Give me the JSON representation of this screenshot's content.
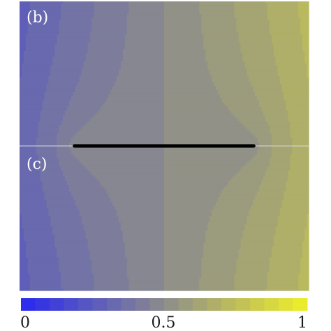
{
  "panels": [
    {
      "label": "(b)"
    },
    {
      "label": "(c)"
    }
  ],
  "colorbar": {
    "ticks": [
      "0",
      "0.5",
      "1"
    ],
    "tick_values": [
      0,
      0.5,
      1
    ],
    "levels": 20
  },
  "colors": {
    "low": "#2828f0",
    "mid": "#8c8c8c",
    "high": "#f0f028",
    "segment": "#000000"
  },
  "chart_data": {
    "type": "heatmap",
    "description_panels": [
      "(b)",
      "(c)"
    ],
    "value_range": [
      0,
      1
    ],
    "contour_levels": 20,
    "colormap": [
      "#2828f0",
      "#8c8c8c",
      "#f0f028"
    ],
    "segment": {
      "x_start": 0.19,
      "x_end": 0.81
    },
    "colorbar_ticks": [
      0,
      0.5,
      1
    ]
  }
}
